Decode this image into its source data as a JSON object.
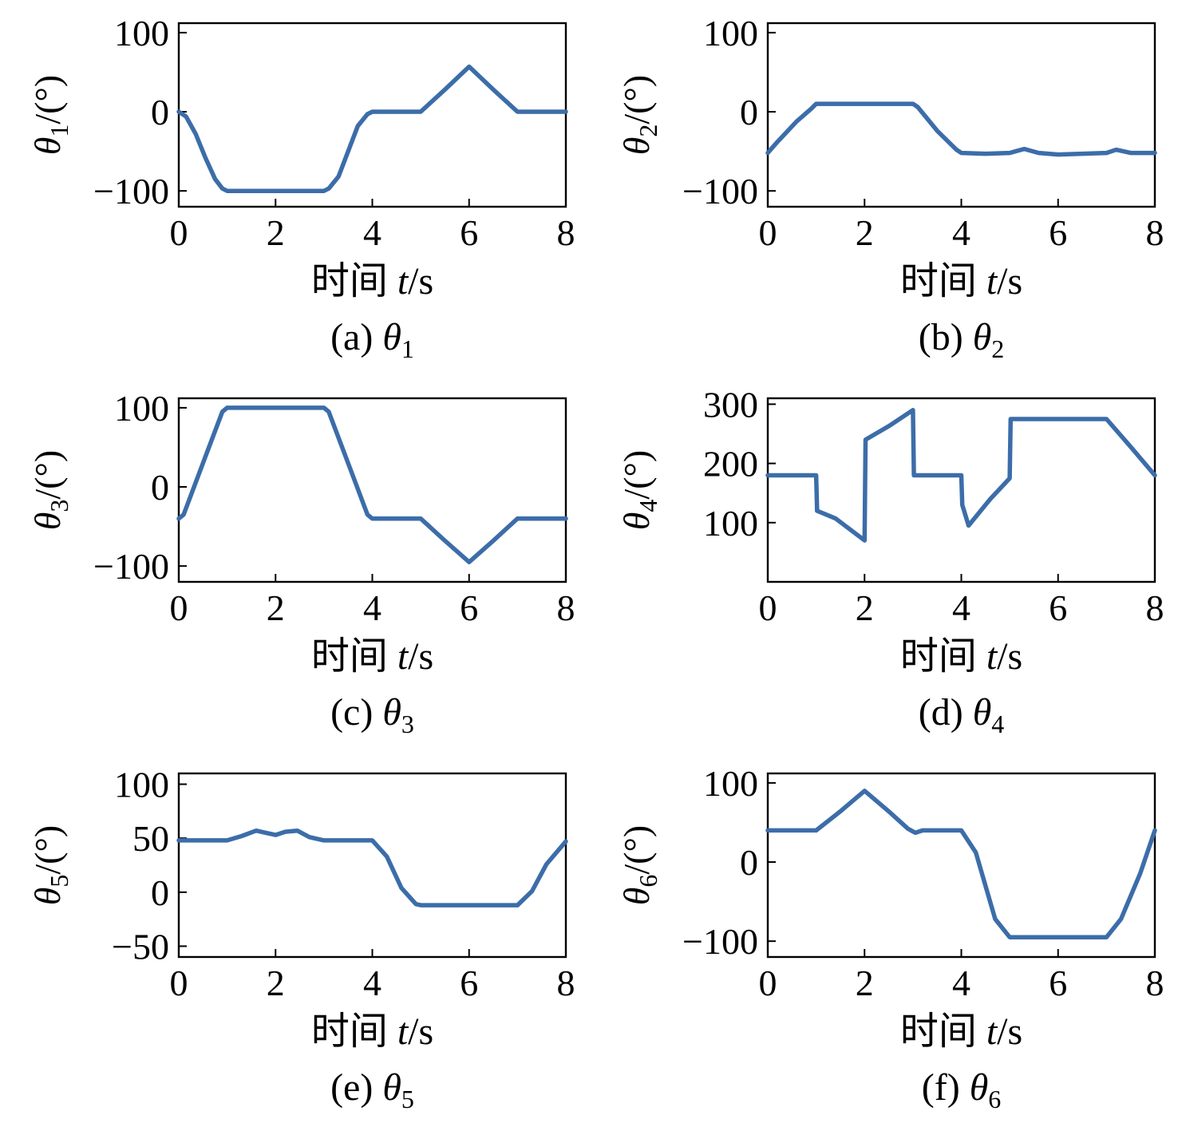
{
  "style": {
    "background": "#ffffff",
    "line_color": "#3C6DA9",
    "axis_color": "#000000",
    "line_width": 5.5,
    "frame_width": 2.4,
    "tick_width": 2,
    "tick_length": 10
  },
  "chart_data": [
    {
      "type": "line",
      "caption": "(a) θ1",
      "caption_parts": {
        "prefix": "(a) ",
        "symbol": "θ",
        "sub": "1"
      },
      "xlabel": "时间 t/s",
      "xlabel_parts": {
        "cjk": "时间 ",
        "var": "t",
        "unit": "/s"
      },
      "ylabel": "θ1/(°)",
      "ylabel_parts": {
        "symbol": "θ",
        "sub": "1",
        "unit": "/(°)"
      },
      "xlim": [
        0,
        8
      ],
      "ylim": [
        -120,
        112
      ],
      "xticks": [
        0,
        2,
        4,
        6,
        8
      ],
      "yticks": [
        -100,
        0,
        100
      ],
      "x": [
        0,
        0.15,
        0.35,
        0.55,
        0.75,
        0.9,
        1,
        3,
        3.1,
        3.3,
        3.5,
        3.7,
        3.9,
        4,
        5,
        5.5,
        6,
        6.5,
        7,
        8
      ],
      "y": [
        0,
        -6,
        -28,
        -58,
        -85,
        -97,
        -100,
        -100,
        -97,
        -82,
        -50,
        -18,
        -3,
        0,
        0,
        28,
        57,
        28,
        0,
        0
      ]
    },
    {
      "type": "line",
      "caption": "(b) θ2",
      "caption_parts": {
        "prefix": "(b) ",
        "symbol": "θ",
        "sub": "2"
      },
      "xlabel": "时间 t/s",
      "xlabel_parts": {
        "cjk": "时间 ",
        "var": "t",
        "unit": "/s"
      },
      "ylabel": "θ2/(°)",
      "ylabel_parts": {
        "symbol": "θ",
        "sub": "2",
        "unit": "/(°)"
      },
      "xlim": [
        0,
        8
      ],
      "ylim": [
        -120,
        112
      ],
      "xticks": [
        0,
        2,
        4,
        6,
        8
      ],
      "yticks": [
        -100,
        0,
        100
      ],
      "x": [
        0,
        0.2,
        0.6,
        0.9,
        1,
        3,
        3.1,
        3.5,
        3.9,
        4,
        4.5,
        5,
        5.3,
        5.6,
        6,
        6.5,
        7,
        7.2,
        7.5,
        8
      ],
      "y": [
        -52,
        -38,
        -12,
        4,
        10,
        10,
        6,
        -24,
        -48,
        -52,
        -53,
        -52,
        -47,
        -52,
        -54,
        -53,
        -52,
        -48,
        -52,
        -52
      ]
    },
    {
      "type": "line",
      "caption": "(c) θ3",
      "caption_parts": {
        "prefix": "(c) ",
        "symbol": "θ",
        "sub": "3"
      },
      "xlabel": "时间 t/s",
      "xlabel_parts": {
        "cjk": "时间 ",
        "var": "t",
        "unit": "/s"
      },
      "ylabel": "θ3/(°)",
      "ylabel_parts": {
        "symbol": "θ",
        "sub": "3",
        "unit": "/(°)"
      },
      "xlim": [
        0,
        8
      ],
      "ylim": [
        -120,
        112
      ],
      "xticks": [
        0,
        2,
        4,
        6,
        8
      ],
      "yticks": [
        -100,
        0,
        100
      ],
      "x": [
        0,
        0.1,
        0.5,
        0.9,
        1,
        3,
        3.1,
        3.5,
        3.9,
        4,
        5,
        5.5,
        6,
        6.5,
        7,
        8
      ],
      "y": [
        -40,
        -35,
        30,
        95,
        100,
        100,
        95,
        30,
        -35,
        -40,
        -40,
        -68,
        -95,
        -68,
        -40,
        -40
      ]
    },
    {
      "type": "line",
      "caption": "(d) θ4",
      "caption_parts": {
        "prefix": "(d) ",
        "symbol": "θ",
        "sub": "4"
      },
      "xlabel": "时间 t/s",
      "xlabel_parts": {
        "cjk": "时间 ",
        "var": "t",
        "unit": "/s"
      },
      "ylabel": "θ4/(°)",
      "ylabel_parts": {
        "symbol": "θ",
        "sub": "4",
        "unit": "/(°)"
      },
      "xlim": [
        0,
        8
      ],
      "ylim": [
        0,
        310
      ],
      "xticks": [
        0,
        2,
        4,
        6,
        8
      ],
      "yticks": [
        100,
        200,
        300
      ],
      "x": [
        0,
        1,
        1.02,
        1.4,
        2,
        2.02,
        2.5,
        3,
        3.02,
        4,
        4.02,
        4.15,
        4.6,
        5,
        5.02,
        7,
        7.5,
        8
      ],
      "y": [
        180,
        180,
        120,
        107,
        70,
        240,
        263,
        290,
        180,
        180,
        130,
        95,
        140,
        175,
        275,
        275,
        228,
        180
      ]
    },
    {
      "type": "line",
      "caption": "(e) θ5",
      "caption_parts": {
        "prefix": "(e) ",
        "symbol": "θ",
        "sub": "5"
      },
      "xlabel": "时间 t/s",
      "xlabel_parts": {
        "cjk": "时间 ",
        "var": "t",
        "unit": "/s"
      },
      "ylabel": "θ5/(°)",
      "ylabel_parts": {
        "symbol": "θ",
        "sub": "5",
        "unit": "/(°)"
      },
      "xlim": [
        0,
        8
      ],
      "ylim": [
        -60,
        110
      ],
      "xticks": [
        0,
        2,
        4,
        6,
        8
      ],
      "yticks": [
        -50,
        0,
        50,
        100
      ],
      "x": [
        0,
        1,
        1.3,
        1.6,
        1.8,
        2,
        2.2,
        2.45,
        2.7,
        3,
        4,
        4.3,
        4.6,
        4.9,
        5,
        7,
        7.3,
        7.6,
        8
      ],
      "y": [
        48,
        48,
        52,
        57,
        55,
        53,
        56,
        57,
        51,
        48,
        48,
        33,
        4,
        -11,
        -12,
        -12,
        1,
        26,
        47
      ]
    },
    {
      "type": "line",
      "caption": "(f) θ6",
      "caption_parts": {
        "prefix": "(f) ",
        "symbol": "θ",
        "sub": "6"
      },
      "xlabel": "时间 t/s",
      "xlabel_parts": {
        "cjk": "时间 ",
        "var": "t",
        "unit": "/s"
      },
      "ylabel": "θ6/(°)",
      "ylabel_parts": {
        "symbol": "θ",
        "sub": "6",
        "unit": "/(°)"
      },
      "xlim": [
        0,
        8
      ],
      "ylim": [
        -120,
        112
      ],
      "xticks": [
        0,
        2,
        4,
        6,
        8
      ],
      "yticks": [
        -100,
        0,
        100
      ],
      "x": [
        0,
        1,
        1.5,
        2,
        2.5,
        2.9,
        3.05,
        3.2,
        4,
        4.3,
        4.7,
        5,
        7,
        7.3,
        7.7,
        8
      ],
      "y": [
        40,
        40,
        64,
        90,
        64,
        42,
        37,
        40,
        40,
        12,
        -72,
        -95,
        -95,
        -72,
        -14,
        40
      ]
    }
  ]
}
